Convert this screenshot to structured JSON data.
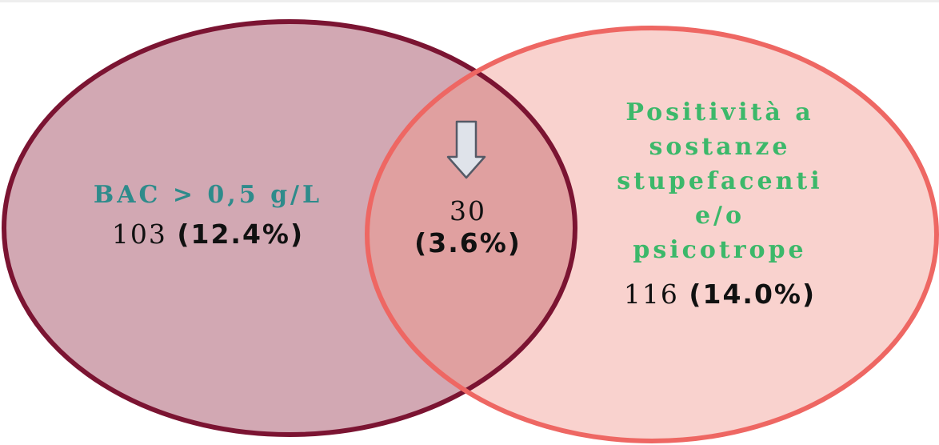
{
  "colors": {
    "left_fill": "#d2a8b3",
    "left_stroke": "#7b1432",
    "right_fill": "#f9d2ce",
    "right_stroke": "#ee6763",
    "overlap_fill": "#e0a0a0",
    "left_heading": "#2e8b8b",
    "right_heading": "#3cb86a",
    "arrow_fill": "#dfe3ea",
    "arrow_stroke": "#555a66"
  },
  "venn": {
    "left": {
      "label": "BAC > 0,5 g/L",
      "count": "103",
      "percent": "(12.4%)"
    },
    "right": {
      "label_lines": [
        "Positività a",
        "sostanze",
        "stupefacenti",
        "e/o",
        "psicotrope"
      ],
      "count": "116",
      "percent": "(14.0%)"
    },
    "overlap": {
      "count": "30",
      "percent": "(3.6%)",
      "icon": "down-arrow-icon"
    }
  }
}
